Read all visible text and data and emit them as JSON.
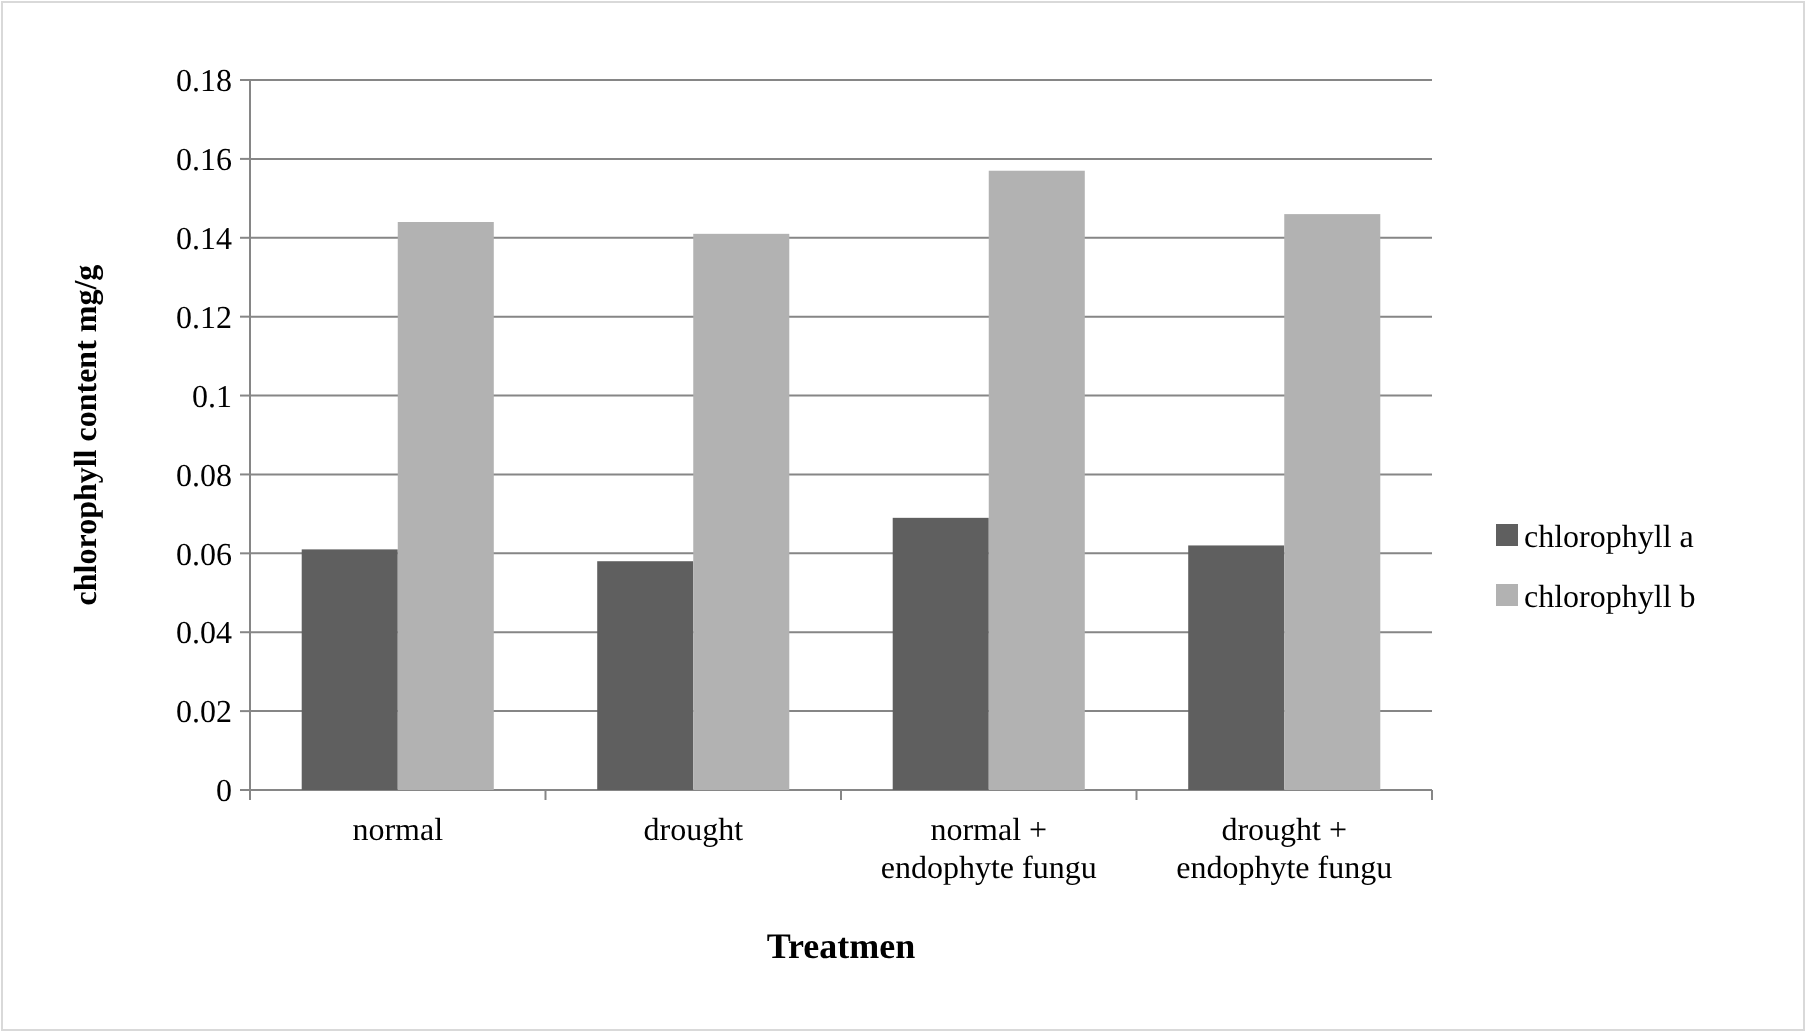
{
  "chart_data": {
    "type": "bar",
    "xlabel": "Treatmen",
    "ylabel": "chlorophyll content mg/g",
    "categories": [
      "normal",
      "drought",
      "normal + endophyte fungu",
      "drought + endophyte fungu"
    ],
    "series": [
      {
        "name": "chlorophyll a",
        "color": "#5f5f5f",
        "values": [
          0.061,
          0.058,
          0.069,
          0.062
        ]
      },
      {
        "name": "chlorophyll b",
        "color": "#b2b2b2",
        "values": [
          0.144,
          0.141,
          0.157,
          0.146
        ]
      }
    ],
    "ylim": [
      0,
      0.18
    ],
    "yticks": [
      0,
      0.02,
      0.04,
      0.06,
      0.08,
      0.1,
      0.12,
      0.14,
      0.16,
      0.18
    ],
    "grid": "y",
    "legend": "right"
  }
}
